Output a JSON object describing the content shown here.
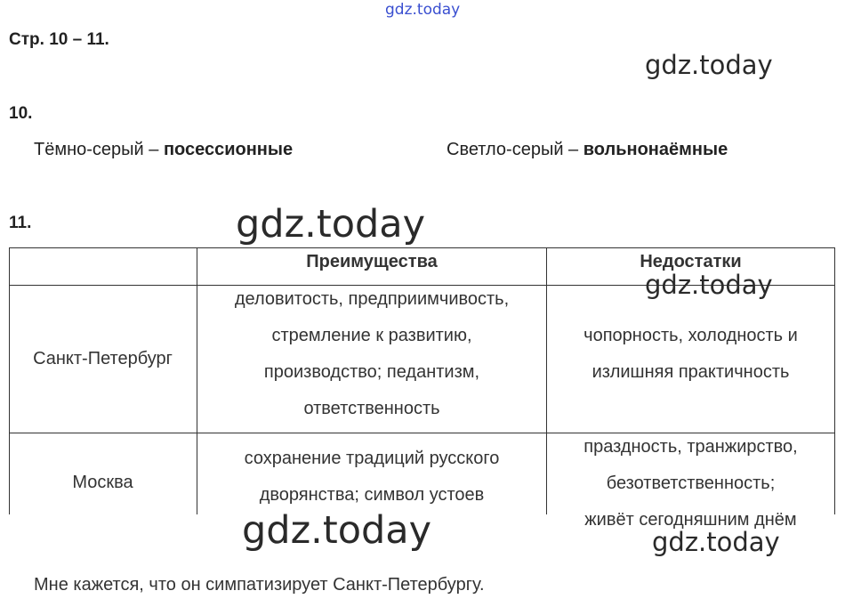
{
  "watermark": "gdz.today",
  "heading": "Стр. 10 – 11.",
  "task10": {
    "number": "10.",
    "left_label": "Тёмно-серый – ",
    "left_value": "посессионные",
    "right_label": "Светло-серый – ",
    "right_value": "вольнонаёмные"
  },
  "task11": {
    "number": "11.",
    "table": {
      "headers": [
        "",
        "Преимущества",
        "Недостатки"
      ],
      "rows": [
        {
          "city": "Санкт-Петербург",
          "advantages": [
            "деловитость, предприимчивость,",
            "стремление к развитию,",
            "производство; педантизм,",
            "ответственность"
          ],
          "disadvantages": [
            "чопорность, холодность и",
            "излишняя практичность"
          ]
        },
        {
          "city": "Москва",
          "advantages": [
            "сохранение традиций русского",
            "дворянства; символ устоев"
          ],
          "disadvantages": [
            "праздность, транжирство,",
            "безответственность;",
            "живёт сегодняшним днём"
          ]
        }
      ]
    },
    "conclusion": "Мне кажется, что он симпатизирует Санкт-Петербургу."
  },
  "colors": {
    "top_watermark": "#3a4fd0",
    "text": "#222222"
  }
}
